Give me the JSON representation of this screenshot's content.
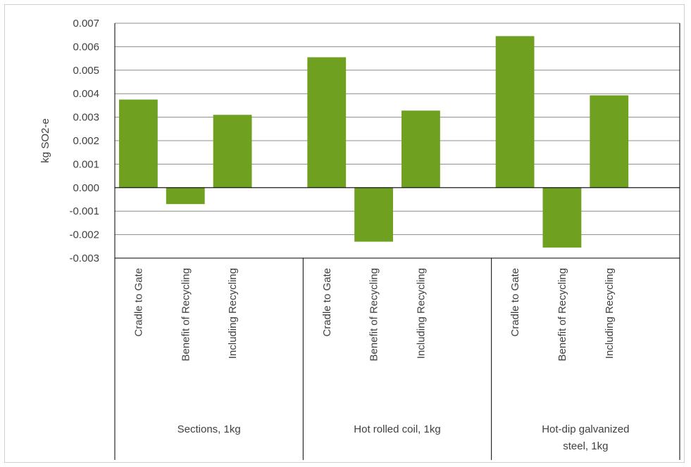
{
  "chart_data": {
    "type": "bar",
    "ylabel": "kg SO2-e",
    "xlabel": "",
    "title": "",
    "ylim": [
      -0.003,
      0.007
    ],
    "ytick_step": 0.001,
    "yticks": [
      "-0.003",
      "-0.002",
      "-0.001",
      "0.000",
      "0.001",
      "0.002",
      "0.003",
      "0.004",
      "0.005",
      "0.006",
      "0.007"
    ],
    "grid": true,
    "legend": "none",
    "bar_color": "#70a020",
    "groups": [
      {
        "label": "Sections, 1kg",
        "categories": [
          "Cradle to Gate",
          "Benefit of Recycling",
          "Including Recycling"
        ],
        "values": [
          0.00375,
          -0.0007,
          0.0031
        ]
      },
      {
        "label": "Hot rolled coil, 1kg",
        "categories": [
          "Cradle to Gate",
          "Benefit of Recycling",
          "Including Recycling"
        ],
        "values": [
          0.00555,
          -0.0023,
          0.00328
        ]
      },
      {
        "label": "Hot-dip galvanized steel, 1kg",
        "label_lines": [
          "Hot-dip galvanized",
          "steel, 1kg"
        ],
        "categories": [
          "Cradle to Gate",
          "Benefit of Recycling",
          "Including Recycling"
        ],
        "values": [
          0.00645,
          -0.00255,
          0.00393
        ]
      }
    ]
  }
}
